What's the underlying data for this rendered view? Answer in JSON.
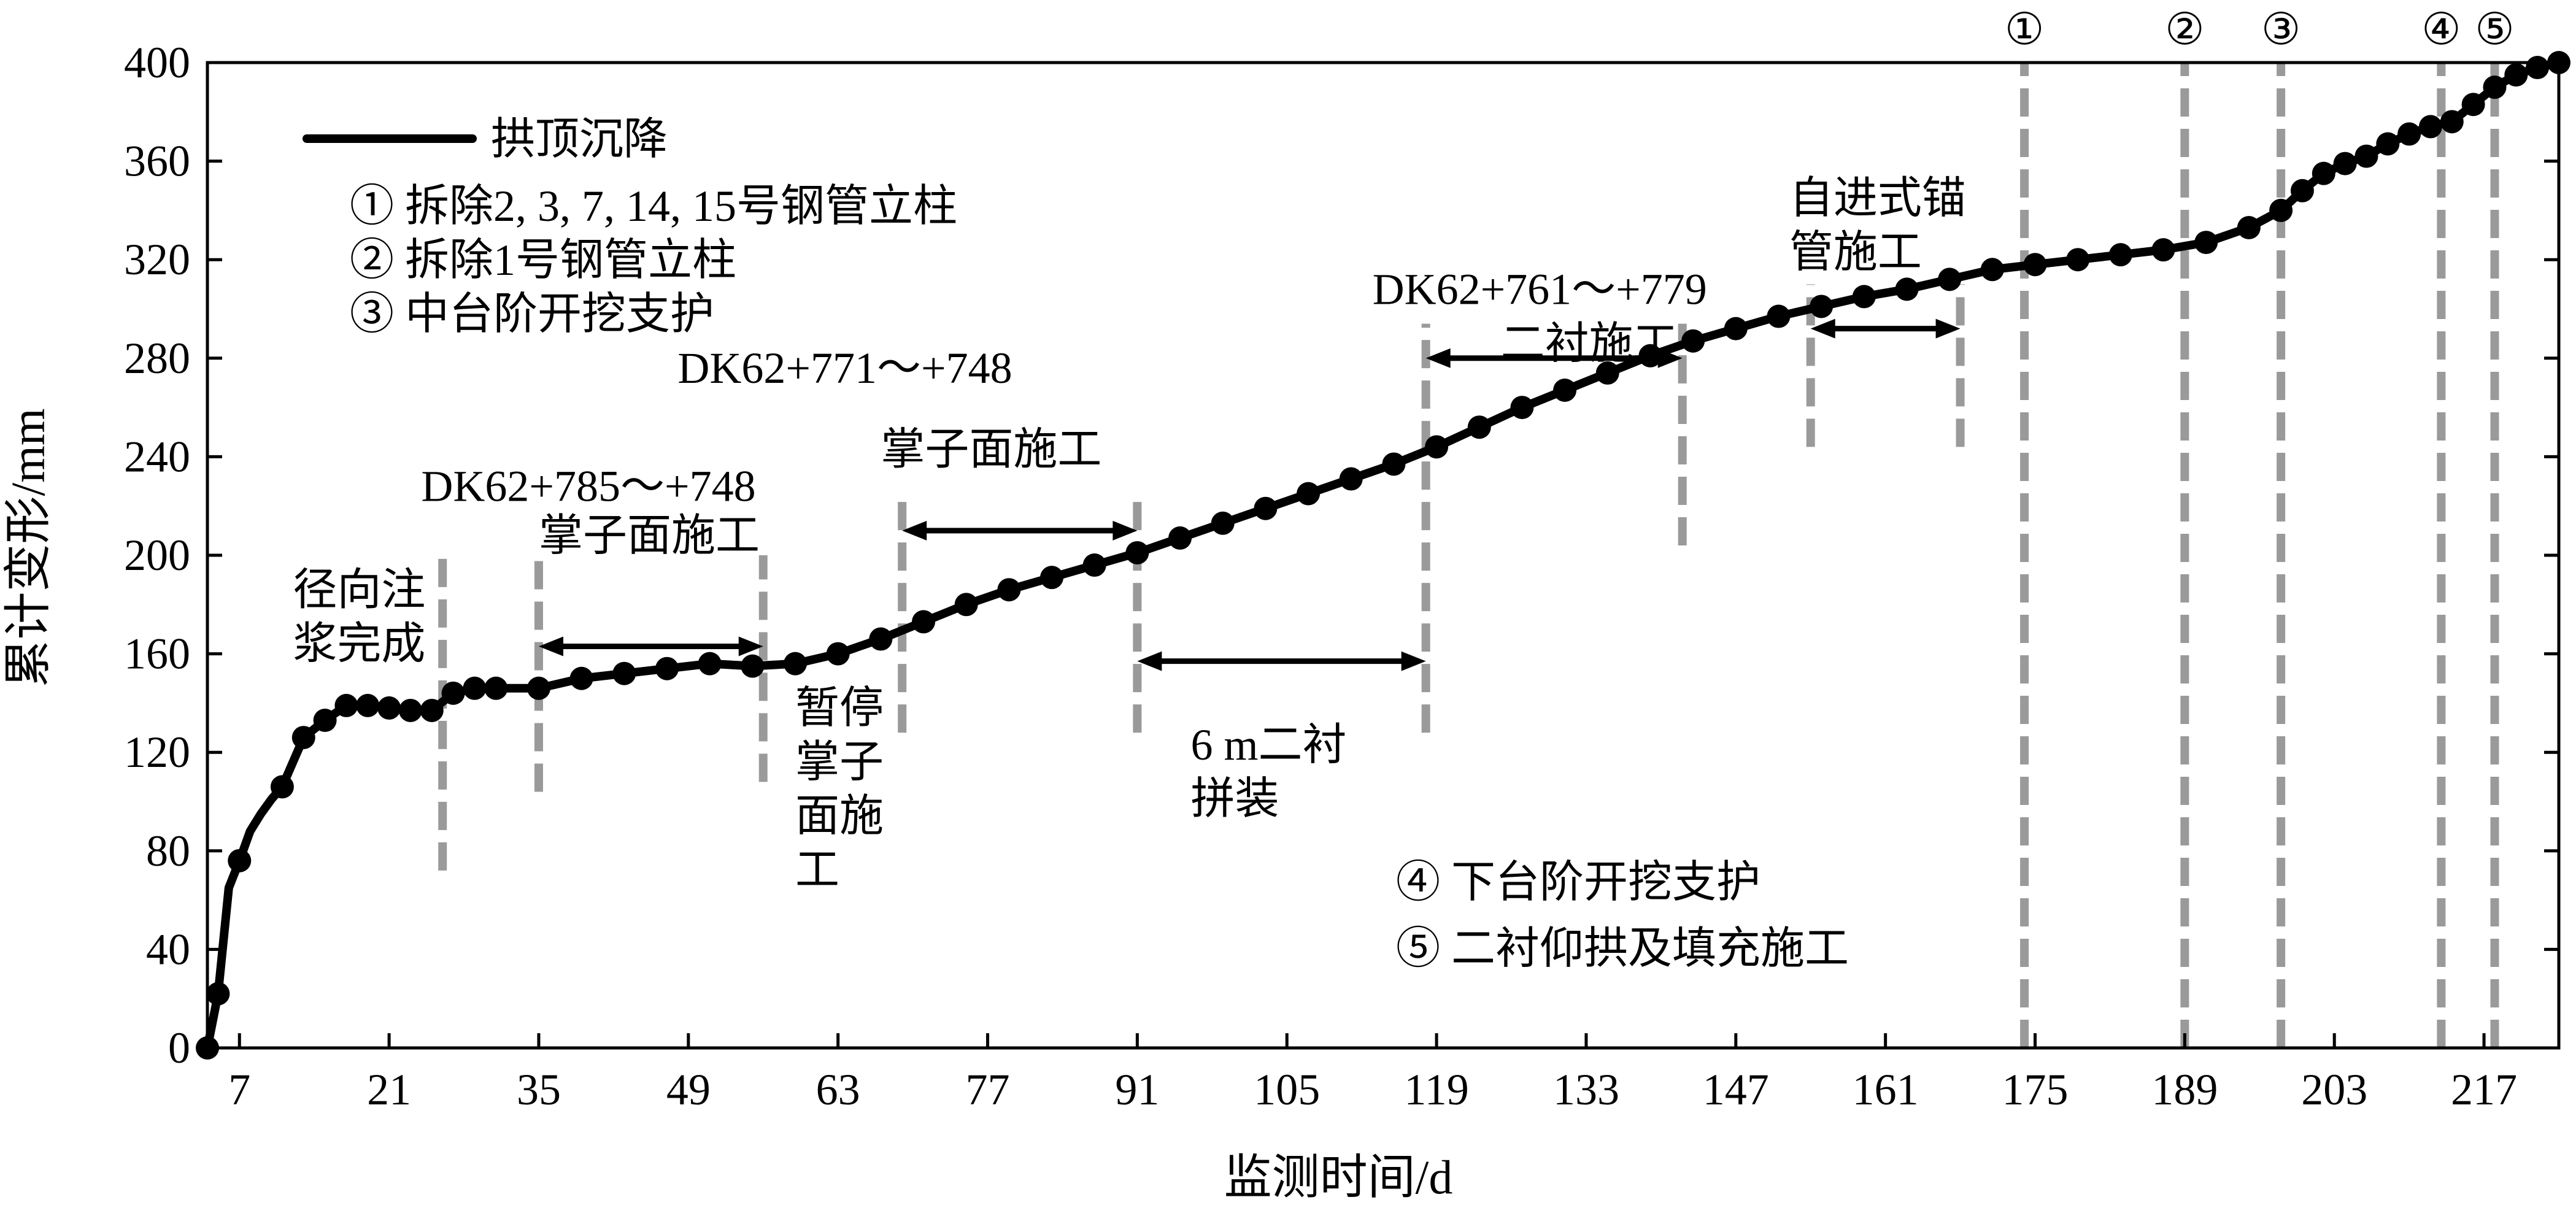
{
  "chart_data": {
    "type": "line",
    "xlabel": "监测时间/d",
    "ylabel": "累计变形/mm",
    "xlim": [
      4,
      224
    ],
    "ylim": [
      0,
      400
    ],
    "x_ticks": [
      7,
      21,
      35,
      49,
      63,
      77,
      91,
      105,
      119,
      133,
      147,
      161,
      175,
      189,
      203,
      217
    ],
    "y_ticks": [
      0,
      40,
      80,
      120,
      160,
      200,
      240,
      280,
      320,
      360,
      400
    ],
    "grid": false,
    "series": [
      {
        "name": "拱顶沉降",
        "x": [
          4,
          5,
          6,
          7,
          8,
          9,
          10,
          11,
          13,
          15,
          17,
          19,
          21,
          23,
          25,
          27,
          29,
          31,
          35,
          39,
          43,
          47,
          51,
          55,
          59,
          63,
          67,
          71,
          75,
          79,
          83,
          87,
          91,
          95,
          99,
          103,
          107,
          111,
          115,
          119,
          123,
          127,
          131,
          135,
          139,
          143,
          147,
          151,
          155,
          159,
          163,
          167,
          171,
          175,
          179,
          183,
          187,
          191,
          195,
          198,
          200,
          202,
          204,
          206,
          208,
          210,
          212,
          214,
          216,
          218,
          220,
          222,
          224
        ],
        "y": [
          0,
          22,
          65,
          76,
          88,
          95,
          101,
          106,
          126,
          133,
          139,
          139,
          138,
          137,
          137,
          144,
          146,
          146,
          146,
          150,
          152,
          154,
          156,
          155,
          156,
          160,
          166,
          173,
          180,
          186,
          191,
          196,
          201,
          207,
          213,
          219,
          225,
          231,
          237,
          244,
          252,
          260,
          267,
          274,
          281,
          287,
          292,
          297,
          301,
          305,
          308,
          312,
          316,
          318,
          320,
          322,
          324,
          327,
          333,
          340,
          348,
          355,
          359,
          362,
          367,
          371,
          374,
          376,
          383,
          390,
          395,
          398,
          400
        ]
      }
    ],
    "markers": [
      4,
      5,
      7,
      11,
      13,
      15,
      17,
      19,
      21,
      23,
      25,
      27,
      29,
      31,
      35,
      39,
      43,
      47,
      51,
      55,
      59,
      63,
      67,
      71,
      75,
      79,
      83,
      87,
      91,
      95,
      99,
      103,
      107,
      111,
      115,
      119,
      123,
      127,
      131,
      135,
      139,
      143,
      147,
      151,
      155,
      159,
      163,
      167,
      171,
      175,
      179,
      183,
      187,
      191,
      195,
      198,
      200,
      202,
      204,
      206,
      208,
      210,
      212,
      214,
      216,
      218,
      220,
      222,
      224
    ],
    "legend": {
      "series_label": "拱顶沉降",
      "items": [
        "① 拆除2, 3, 7, 14, 15号钢管立柱",
        "② 拆除1号钢管立柱",
        "③ 中台阶开挖支护"
      ],
      "items2": [
        "④ 下台阶开挖支护",
        "⑤ 二衬仰拱及填充施工"
      ]
    },
    "event_lines": [
      {
        "x": 26,
        "y0": 72,
        "y1": 200
      },
      {
        "x": 35,
        "y0": 104,
        "y1": 200
      },
      {
        "x": 56,
        "y0": 108,
        "y1": 200
      },
      {
        "x": 69,
        "y0": 128,
        "y1": 222
      },
      {
        "x": 91,
        "y0": 128,
        "y1": 222
      },
      {
        "x": 118,
        "y0": 128,
        "y1": 294
      },
      {
        "x": 142,
        "y0": 204,
        "y1": 294
      },
      {
        "x": 154,
        "y0": 244,
        "y1": 310
      },
      {
        "x": 168,
        "y0": 244,
        "y1": 310
      },
      {
        "x": 174,
        "y0": 0,
        "y1": 400,
        "label": "①"
      },
      {
        "x": 189,
        "y0": 0,
        "y1": 400,
        "label": "②"
      },
      {
        "x": 198,
        "y0": 0,
        "y1": 400,
        "label": "③"
      },
      {
        "x": 213,
        "y0": 0,
        "y1": 400,
        "label": "④"
      },
      {
        "x": 218,
        "y0": 0,
        "y1": 400,
        "label": "⑤"
      }
    ],
    "arrows": [
      {
        "x0": 35,
        "x1": 56,
        "y": 163
      },
      {
        "x0": 69,
        "x1": 91,
        "y": 210
      },
      {
        "x0": 91,
        "x1": 118,
        "y": 157
      },
      {
        "x0": 118,
        "x1": 142,
        "y": 280
      },
      {
        "x0": 154,
        "x1": 168,
        "y": 292
      }
    ],
    "annotations": [
      {
        "x": 12,
        "y": 180,
        "lines": [
          "径向注",
          "浆完成"
        ]
      },
      {
        "x": 24,
        "y": 222,
        "lines": [
          "DK62+785～+748"
        ]
      },
      {
        "x": 35,
        "y": 202,
        "lines": [
          "掌子面施工"
        ]
      },
      {
        "x": 48,
        "y": 270,
        "lines": [
          "DK62+771～+748"
        ]
      },
      {
        "x": 67,
        "y": 237,
        "lines": [
          "掌子面施工"
        ]
      },
      {
        "x": 113,
        "y": 302,
        "lines": [
          "DK62+761～+779"
        ]
      },
      {
        "x": 125,
        "y": 280,
        "lines": [
          "二衬施工"
        ]
      },
      {
        "x": 59,
        "y": 132,
        "lines": [
          "暂停",
          "掌子",
          "面施",
          "工"
        ]
      },
      {
        "x": 96,
        "y": 117,
        "lines": [
          "6 m二衬",
          "拼装"
        ]
      },
      {
        "x": 152,
        "y": 339,
        "lines": [
          "自进式锚",
          "管施工"
        ]
      }
    ]
  }
}
